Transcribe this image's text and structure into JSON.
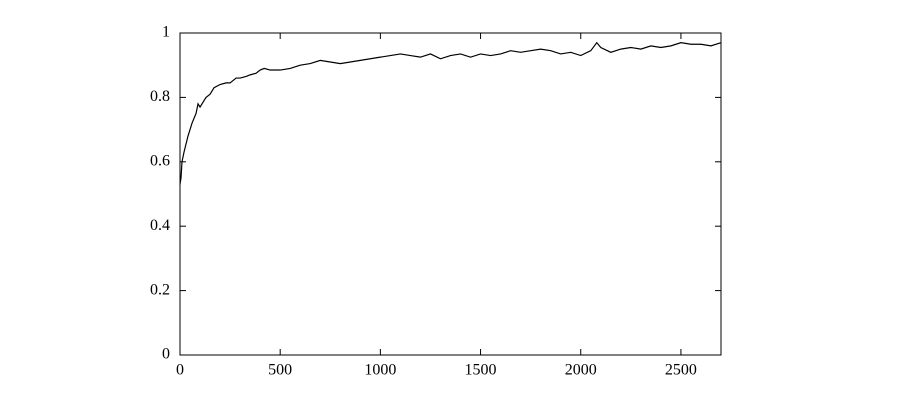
{
  "chart_data": {
    "type": "line",
    "x": [
      0,
      5,
      10,
      20,
      40,
      60,
      80,
      90,
      100,
      120,
      130,
      150,
      170,
      200,
      230,
      250,
      280,
      300,
      330,
      350,
      380,
      400,
      420,
      450,
      500,
      550,
      600,
      650,
      700,
      750,
      800,
      850,
      900,
      950,
      1000,
      1050,
      1100,
      1150,
      1200,
      1250,
      1300,
      1350,
      1400,
      1450,
      1500,
      1550,
      1600,
      1650,
      1700,
      1750,
      1800,
      1850,
      1900,
      1950,
      2000,
      2050,
      2080,
      2100,
      2150,
      2200,
      2250,
      2300,
      2350,
      2400,
      2450,
      2500,
      2550,
      2600,
      2650,
      2700
    ],
    "values": [
      0.53,
      0.55,
      0.6,
      0.63,
      0.68,
      0.72,
      0.75,
      0.78,
      0.77,
      0.79,
      0.8,
      0.81,
      0.83,
      0.84,
      0.845,
      0.845,
      0.86,
      0.86,
      0.865,
      0.87,
      0.875,
      0.885,
      0.89,
      0.885,
      0.885,
      0.89,
      0.9,
      0.905,
      0.915,
      0.91,
      0.905,
      0.91,
      0.915,
      0.92,
      0.925,
      0.93,
      0.935,
      0.93,
      0.925,
      0.935,
      0.92,
      0.93,
      0.935,
      0.925,
      0.935,
      0.93,
      0.935,
      0.945,
      0.94,
      0.945,
      0.95,
      0.945,
      0.935,
      0.94,
      0.93,
      0.945,
      0.97,
      0.955,
      0.94,
      0.95,
      0.955,
      0.95,
      0.96,
      0.955,
      0.96,
      0.97,
      0.965,
      0.965,
      0.96,
      0.97
    ],
    "color": "#000000",
    "xlim": [
      0,
      2700
    ],
    "xticks": [
      0,
      500,
      1000,
      1500,
      2000,
      2500
    ],
    "ylim": [
      0,
      1
    ],
    "yticks": [
      0,
      0.2,
      0.4,
      0.6,
      0.8,
      1
    ]
  }
}
